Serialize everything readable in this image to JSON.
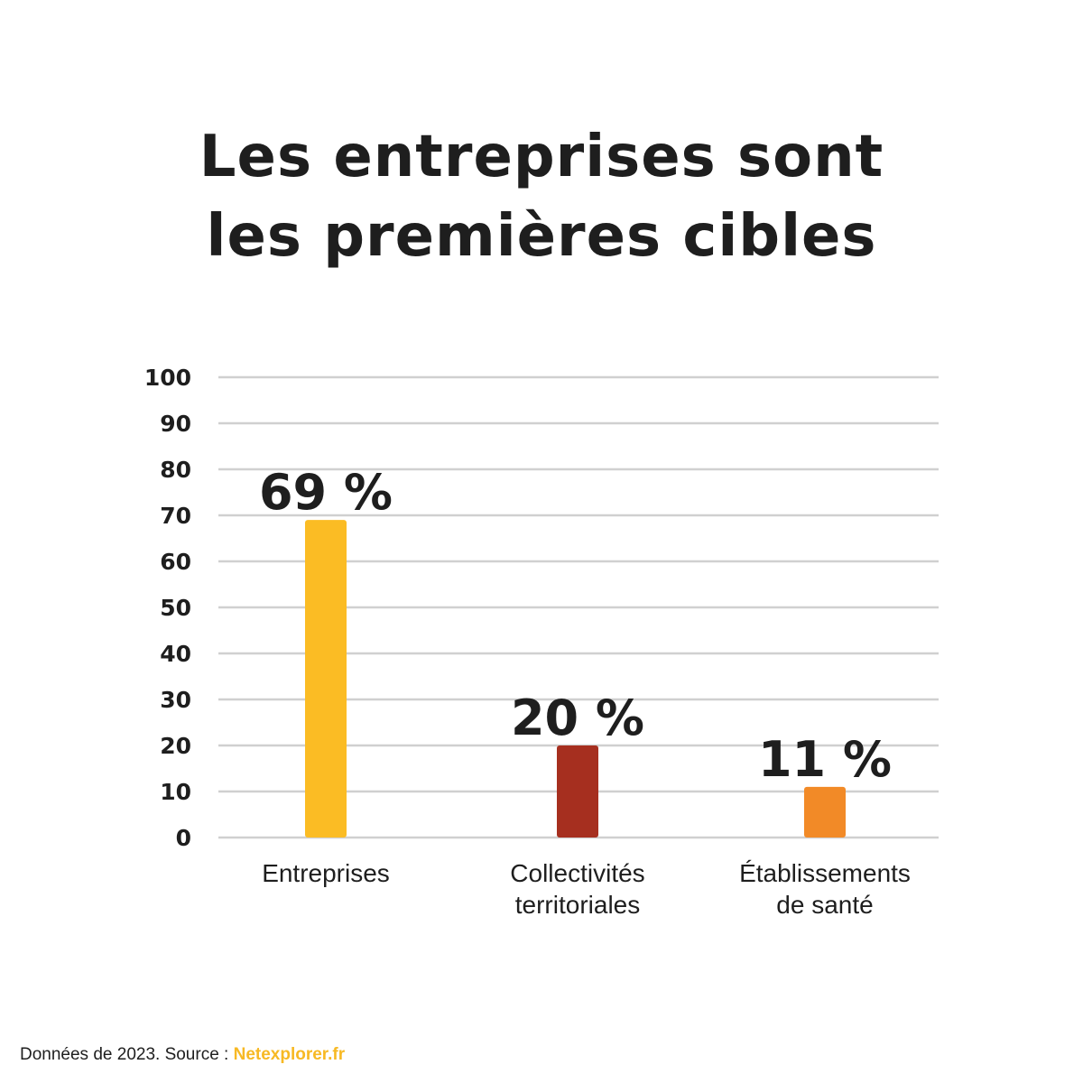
{
  "title_line1": "Les entreprises sont",
  "title_line2": "les premières cibles",
  "footer": {
    "text": "Données de 2023. Source : ",
    "source": "Netexplorer.fr"
  },
  "colors": {
    "text": "#1e1e1e",
    "grid": "#d0d0d0",
    "source_link": "#f7b924"
  },
  "chart_data": {
    "type": "bar",
    "categories": [
      [
        "Entreprises"
      ],
      [
        "Collectivités",
        "territoriales"
      ],
      [
        "Établissements",
        "de santé"
      ]
    ],
    "values": [
      69,
      20,
      11
    ],
    "data_labels": [
      "69 %",
      "20 %",
      "11 %"
    ],
    "bar_colors": [
      "#fbbc24",
      "#a62f1f",
      "#f28a27"
    ],
    "ylim": [
      0,
      100
    ],
    "yticks": [
      0,
      10,
      20,
      30,
      40,
      50,
      60,
      70,
      80,
      90,
      100
    ],
    "grid": true,
    "legend": "none",
    "title": "Les entreprises sont les premières cibles"
  }
}
